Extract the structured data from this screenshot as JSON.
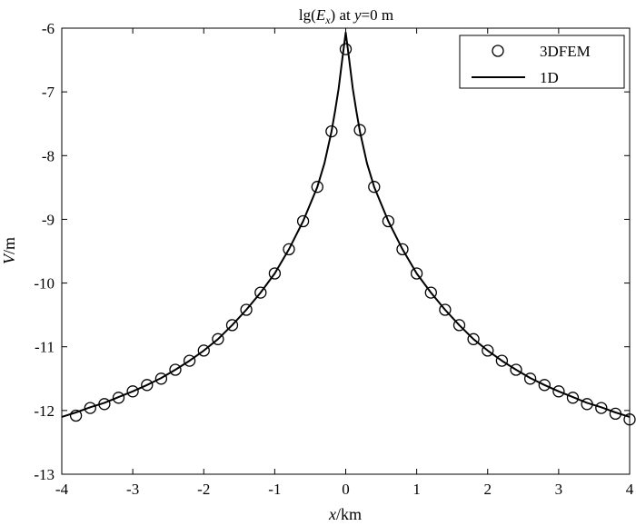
{
  "chart_data": {
    "type": "line",
    "title_parts": {
      "prefix": "lg(",
      "var": "E",
      "sub": "x",
      "mid": ") at ",
      "yvar": "y",
      "suffix": "=0 m"
    },
    "xlabel_parts": {
      "var": "x",
      "unit": "/km"
    },
    "ylabel_parts": {
      "var": "V",
      "unit": "/m"
    },
    "xlim": [
      -4,
      4
    ],
    "ylim": [
      -13,
      -6
    ],
    "xticks": [
      -4,
      -3,
      -2,
      -1,
      0,
      1,
      2,
      3,
      4
    ],
    "yticks": [
      -6,
      -7,
      -8,
      -9,
      -10,
      -11,
      -12,
      -13
    ],
    "grid": false,
    "legend_position": "top-right",
    "series": [
      {
        "name": "3DFEM",
        "style": "markers",
        "marker": "open-circle",
        "x": [
          -3.8,
          -3.6,
          -3.4,
          -3.2,
          -3.0,
          -2.8,
          -2.6,
          -2.4,
          -2.2,
          -2.0,
          -1.8,
          -1.6,
          -1.4,
          -1.2,
          -1.0,
          -0.8,
          -0.6,
          -0.4,
          -0.2,
          0.0,
          0.2,
          0.4,
          0.6,
          0.8,
          1.0,
          1.2,
          1.4,
          1.6,
          1.8,
          2.0,
          2.2,
          2.4,
          2.6,
          2.8,
          3.0,
          3.2,
          3.4,
          3.6,
          3.8,
          4.0
        ],
        "y": [
          -12.08,
          -11.96,
          -11.9,
          -11.8,
          -11.7,
          -11.6,
          -11.5,
          -11.36,
          -11.22,
          -11.06,
          -10.88,
          -10.66,
          -10.42,
          -10.15,
          -9.85,
          -9.47,
          -9.03,
          -8.49,
          -7.62,
          -6.33,
          -7.6,
          -8.49,
          -9.03,
          -9.47,
          -9.85,
          -10.15,
          -10.42,
          -10.66,
          -10.88,
          -11.06,
          -11.22,
          -11.36,
          -11.5,
          -11.6,
          -11.7,
          -11.8,
          -11.9,
          -11.96,
          -12.05,
          -12.14
        ]
      },
      {
        "name": "1D",
        "style": "line",
        "x": [
          -4.0,
          -3.8,
          -3.6,
          -3.4,
          -3.2,
          -3.0,
          -2.8,
          -2.6,
          -2.4,
          -2.2,
          -2.0,
          -1.8,
          -1.6,
          -1.4,
          -1.2,
          -1.0,
          -0.8,
          -0.6,
          -0.4,
          -0.3,
          -0.2,
          -0.15,
          -0.1,
          -0.05,
          0.0,
          0.05,
          0.1,
          0.15,
          0.2,
          0.3,
          0.4,
          0.6,
          0.8,
          1.0,
          1.2,
          1.4,
          1.6,
          1.8,
          2.0,
          2.2,
          2.4,
          2.6,
          2.8,
          3.0,
          3.2,
          3.4,
          3.6,
          3.8,
          4.0
        ],
        "y": [
          -12.1,
          -12.03,
          -11.95,
          -11.88,
          -11.79,
          -11.7,
          -11.6,
          -11.49,
          -11.36,
          -11.22,
          -11.06,
          -10.88,
          -10.66,
          -10.42,
          -10.15,
          -9.85,
          -9.47,
          -9.03,
          -8.49,
          -8.12,
          -7.62,
          -7.3,
          -6.95,
          -6.5,
          -6.07,
          -6.5,
          -6.95,
          -7.3,
          -7.62,
          -8.12,
          -8.49,
          -9.03,
          -9.47,
          -9.85,
          -10.15,
          -10.42,
          -10.66,
          -10.88,
          -11.06,
          -11.22,
          -11.36,
          -11.49,
          -11.6,
          -11.7,
          -11.79,
          -11.88,
          -11.95,
          -12.03,
          -12.1
        ]
      }
    ]
  }
}
